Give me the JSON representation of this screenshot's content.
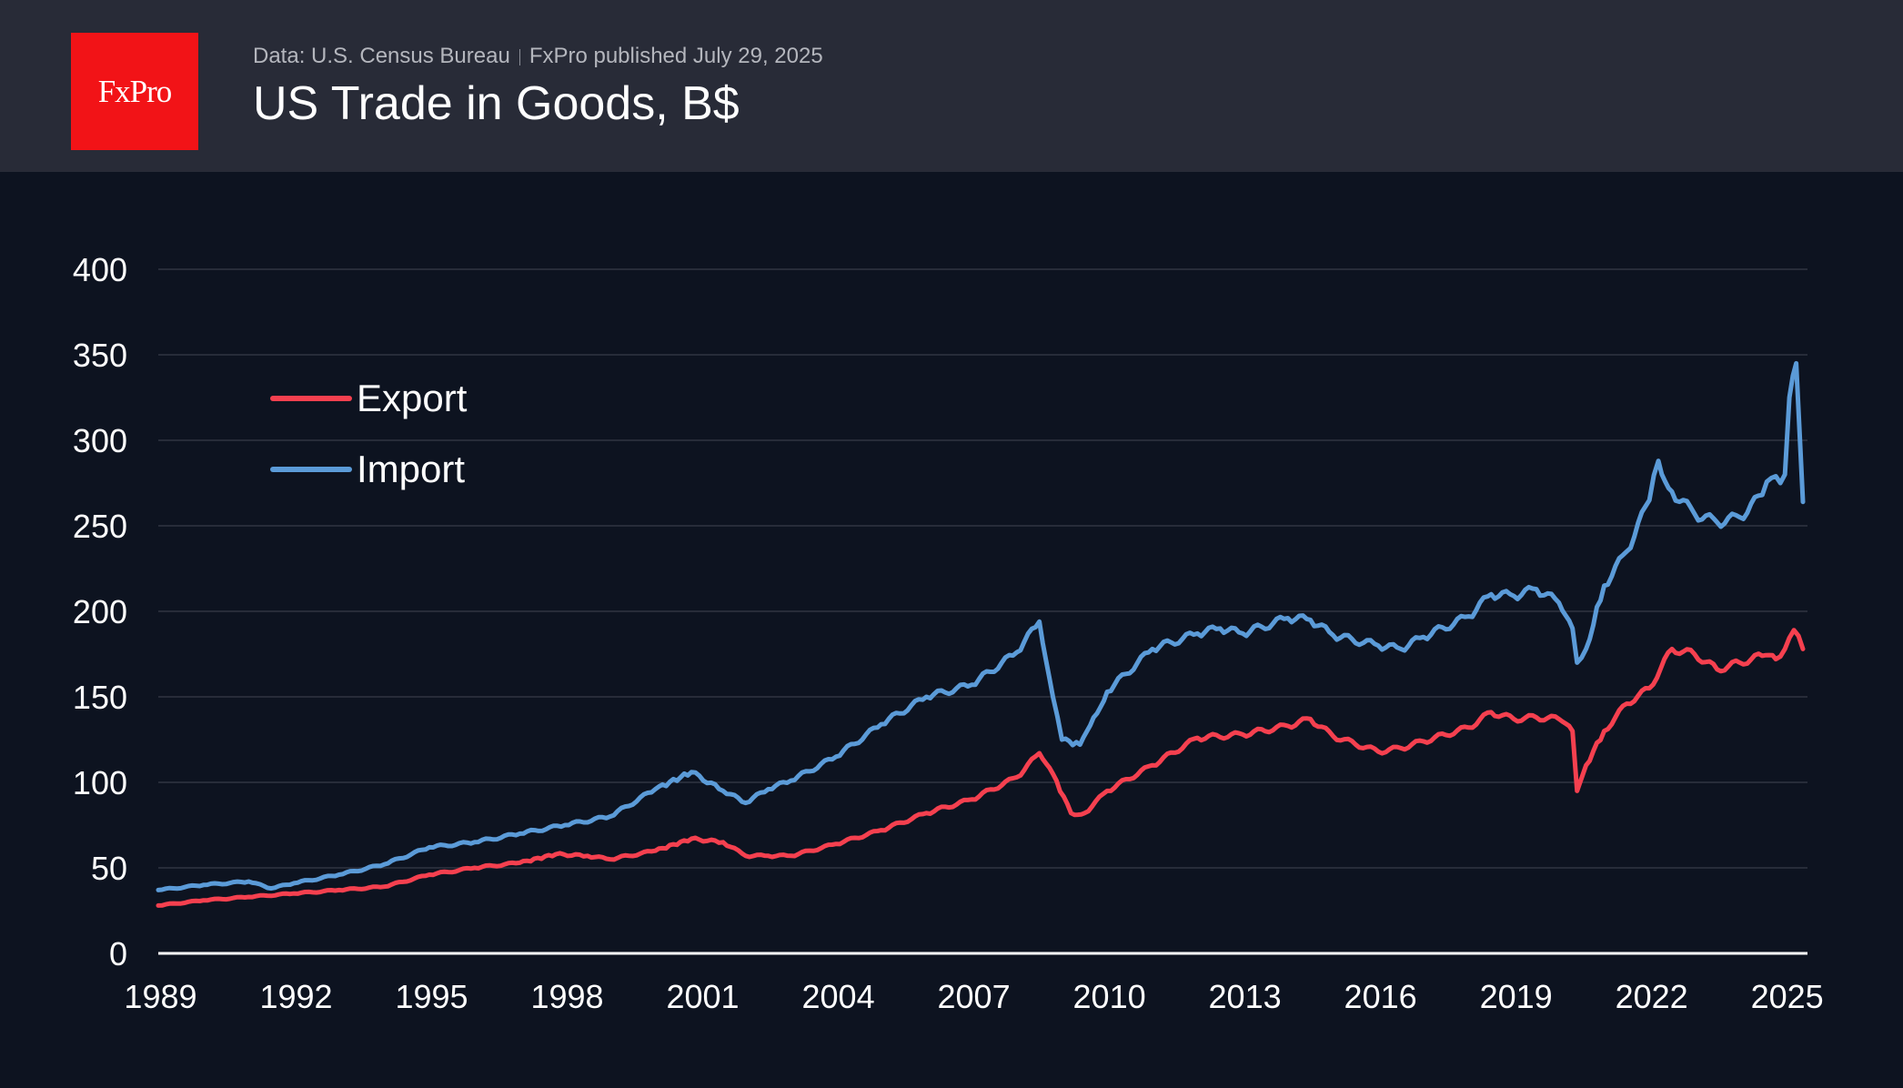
{
  "header": {
    "logo_text": "FxPro",
    "source": "Data: U.S. Census Bureau",
    "published": "FxPro published July 29, 2025",
    "title": "US Trade in Goods, B$"
  },
  "colors": {
    "export": "#f5404f",
    "import": "#5b9bd8",
    "logo": "#f21317"
  },
  "chart_data": {
    "type": "line",
    "title": "US Trade in Goods, B$",
    "xlabel": "",
    "ylabel": "",
    "ylim": [
      0,
      400
    ],
    "xlim": [
      1989,
      2025.5
    ],
    "yticks": [
      "0",
      "50",
      "100",
      "150",
      "200",
      "250",
      "300",
      "350",
      "400"
    ],
    "xticks": [
      "1989",
      "1992",
      "1995",
      "1998",
      "2001",
      "2004",
      "2007",
      "2010",
      "2013",
      "2016",
      "2019",
      "2022",
      "2025"
    ],
    "grid": true,
    "legend": "top-left",
    "series": [
      {
        "name": "Export",
        "x": [
          1989.0,
          1990.0,
          1991.0,
          1992.0,
          1993.0,
          1994.0,
          1995.0,
          1996.0,
          1997.0,
          1997.8,
          1998.5,
          1999.0,
          2000.0,
          2000.8,
          2001.5,
          2002.0,
          2002.5,
          2003.0,
          2004.0,
          2005.0,
          2006.0,
          2007.0,
          2008.0,
          2008.5,
          2008.8,
          2009.2,
          2009.5,
          2010.0,
          2011.0,
          2012.0,
          2013.0,
          2014.0,
          2014.5,
          2015.0,
          2016.0,
          2016.5,
          2017.0,
          2018.0,
          2018.5,
          2019.0,
          2019.5,
          2020.0,
          2020.3,
          2020.4,
          2020.6,
          2021.0,
          2021.5,
          2022.0,
          2022.5,
          2023.0,
          2023.5,
          2024.0,
          2024.5,
          2024.8,
          2025.0,
          2025.2,
          2025.4
        ],
        "values": [
          28,
          31,
          33,
          35,
          37,
          39,
          46,
          50,
          53,
          58,
          57,
          55,
          60,
          67,
          65,
          57,
          57,
          57,
          64,
          72,
          82,
          90,
          103,
          117,
          105,
          82,
          82,
          95,
          110,
          126,
          128,
          133,
          137,
          127,
          118,
          120,
          124,
          132,
          141,
          137,
          138,
          137,
          130,
          95,
          110,
          130,
          146,
          155,
          178,
          175,
          166,
          170,
          174,
          172,
          178,
          189,
          178
        ]
      },
      {
        "name": "Import",
        "x": [
          1989.0,
          1990.0,
          1991.0,
          1991.5,
          1992.0,
          1993.0,
          1994.0,
          1995.0,
          1996.0,
          1997.0,
          1998.0,
          1999.0,
          2000.0,
          2000.8,
          2001.5,
          2002.0,
          2002.5,
          2003.0,
          2004.0,
          2005.0,
          2006.0,
          2007.0,
          2008.0,
          2008.5,
          2008.8,
          2009.0,
          2009.4,
          2009.7,
          2010.0,
          2011.0,
          2012.0,
          2012.5,
          2013.0,
          2014.0,
          2014.5,
          2015.0,
          2016.0,
          2016.5,
          2017.0,
          2018.0,
          2018.5,
          2019.0,
          2019.5,
          2020.0,
          2020.3,
          2020.4,
          2020.6,
          2021.0,
          2021.5,
          2022.0,
          2022.2,
          2022.5,
          2023.0,
          2023.5,
          2024.0,
          2024.5,
          2024.7,
          2024.9,
          2025.0,
          2025.1,
          2025.25,
          2025.4
        ],
        "values": [
          37,
          40,
          42,
          38,
          41,
          46,
          52,
          62,
          65,
          70,
          75,
          80,
          96,
          106,
          95,
          88,
          96,
          101,
          115,
          134,
          150,
          157,
          176,
          194,
          150,
          125,
          122,
          138,
          153,
          178,
          187,
          190,
          187,
          196,
          195,
          186,
          180,
          178,
          185,
          197,
          210,
          209,
          213,
          205,
          190,
          170,
          178,
          215,
          235,
          265,
          288,
          270,
          257,
          252,
          255,
          268,
          278,
          275,
          280,
          325,
          345,
          264
        ]
      }
    ]
  }
}
